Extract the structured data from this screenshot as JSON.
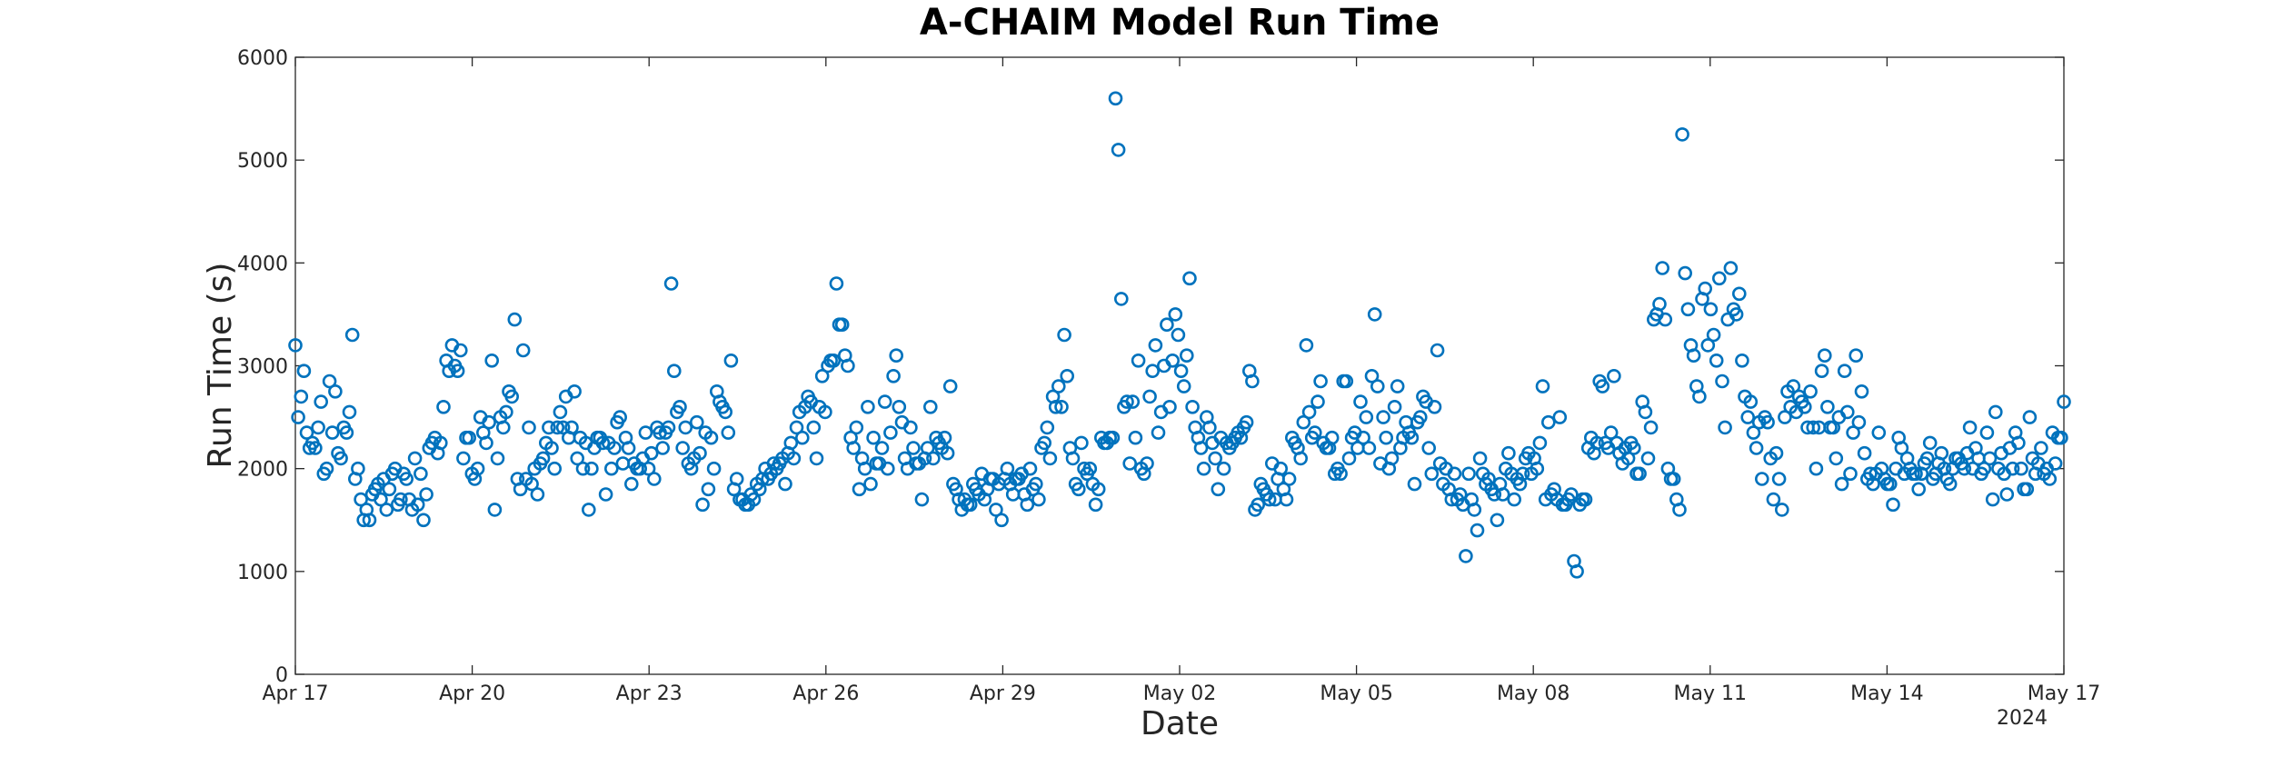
{
  "chart_data": {
    "type": "scatter",
    "title": "A-CHAIM Model Run Time",
    "xlabel": "Date",
    "ylabel": "Run Time (s)",
    "ylim": [
      0,
      6000
    ],
    "yticks": [
      "0",
      "1000",
      "2000",
      "3000",
      "4000",
      "5000",
      "6000"
    ],
    "xlim_days": [
      0,
      30
    ],
    "xticks": [
      {
        "day": 0,
        "label": "Apr 17"
      },
      {
        "day": 3,
        "label": "Apr 20"
      },
      {
        "day": 6,
        "label": "Apr 23"
      },
      {
        "day": 9,
        "label": "Apr 26"
      },
      {
        "day": 12,
        "label": "Apr 29"
      },
      {
        "day": 15,
        "label": "May 02"
      },
      {
        "day": 18,
        "label": "May 05"
      },
      {
        "day": 21,
        "label": "May 08"
      },
      {
        "day": 24,
        "label": "May 11"
      },
      {
        "day": 27,
        "label": "May 14"
      },
      {
        "day": 30,
        "label": "May 17"
      }
    ],
    "year_label": "2024",
    "marker_color": "#0072BD",
    "grid": false,
    "series": [
      {
        "name": "Run Time",
        "x_unit": "days since Apr 17",
        "y": [
          3200,
          2500,
          2700,
          2950,
          2350,
          2200,
          2250,
          2200,
          2400,
          2650,
          1950,
          2000,
          2850,
          2350,
          2750,
          2150,
          2100,
          2400,
          2350,
          2550,
          3300,
          1900,
          2000,
          1700,
          1500,
          1600,
          1500,
          1750,
          1800,
          1850,
          1700,
          1900,
          1600,
          1800,
          1950,
          2000,
          1650,
          1700,
          1950,
          1900,
          1700,
          1600,
          2100,
          1650,
          1950,
          1500,
          1750,
          2200,
          2250,
          2300,
          2150,
          2250,
          2600,
          3050,
          2950,
          3200,
          3000,
          2950,
          3150,
          2100,
          2300,
          2300,
          1950,
          1900,
          2000,
          2500,
          2350,
          2250,
          2450,
          3050,
          1600,
          2100,
          2500,
          2400,
          2550,
          2750,
          2700,
          3450,
          1900,
          1800,
          3150,
          1900,
          2400,
          1850,
          2000,
          1750,
          2050,
          2100,
          2250,
          2400,
          2200,
          2000,
          2400,
          2550,
          2400,
          2700,
          2300,
          2400,
          2750,
          2100,
          2300,
          2000,
          2250,
          1600,
          2000,
          2200,
          2300,
          2300,
          2250,
          1750,
          2250,
          2000,
          2200,
          2450,
          2500,
          2050,
          2300,
          2200,
          1850,
          2050,
          2000,
          2000,
          2100,
          2350,
          2000,
          2150,
          1900,
          2400,
          2350,
          2200,
          2350,
          2400,
          3800,
          2950,
          2550,
          2600,
          2200,
          2400,
          2050,
          2000,
          2100,
          2450,
          2150,
          1650,
          2350,
          1800,
          2300,
          2000,
          2750,
          2650,
          2600,
          2550,
          2350,
          3050,
          1800,
          1900,
          1700,
          1700,
          1650,
          1650,
          1750,
          1700,
          1850,
          1800,
          1900,
          2000,
          1900,
          1950,
          2050,
          2000,
          2050,
          2100,
          1850,
          2150,
          2250,
          2100,
          2400,
          2550,
          2300,
          2600,
          2700,
          2650,
          2400,
          2100,
          2600,
          2900,
          2550,
          3000,
          3050,
          3050,
          3800,
          3400,
          3400,
          3100,
          3000,
          2300,
          2200,
          2400,
          1800,
          2100,
          2000,
          2600,
          1850,
          2300,
          2050,
          2050,
          2200,
          2650,
          2000,
          2350,
          2900,
          3100,
          2600,
          2450,
          2100,
          2000,
          2400,
          2200,
          2050,
          2050,
          1700,
          2100,
          2200,
          2600,
          2100,
          2300,
          2250,
          2200,
          2300,
          2150,
          2800,
          1850,
          1800,
          1700,
          1600,
          1700,
          1650,
          1650,
          1850,
          1800,
          1750,
          1950,
          1700,
          1800,
          1900,
          1900,
          1600,
          1850,
          1500,
          1900,
          2000,
          1850,
          1750,
          1900,
          1900,
          1950,
          1750,
          1650,
          2000,
          1800,
          1850,
          1700,
          2200,
          2250,
          2400,
          2100,
          2700,
          2600,
          2800,
          2600,
          3300,
          2900,
          2200,
          2100,
          1850,
          1800,
          2250,
          2000,
          1950,
          2000,
          1850,
          1650,
          1800,
          2300,
          2250,
          2250,
          2300,
          2300,
          5600,
          5100,
          3650,
          2600,
          2650,
          2050,
          2650,
          2300,
          3050,
          2000,
          1950,
          2050,
          2700,
          2950,
          3200,
          2350,
          2550,
          3000,
          3400,
          2600,
          3050,
          3500,
          3300,
          2950,
          2800,
          3100,
          3850,
          2600,
          2400,
          2300,
          2200,
          2000,
          2500,
          2400,
          2250,
          2100,
          1800,
          2300,
          2000,
          2250,
          2200,
          2250,
          2300,
          2350,
          2300,
          2400,
          2450,
          2950,
          2850,
          1600,
          1650,
          1850,
          1800,
          1750,
          1700,
          2050,
          1700,
          1900,
          2000,
          1800,
          1700,
          1900,
          2300,
          2250,
          2200,
          2100,
          2450,
          3200,
          2550,
          2300,
          2350,
          2650,
          2850,
          2250,
          2200,
          2200,
          2300,
          1950,
          2000,
          1950,
          2850,
          2850,
          2100,
          2300,
          2350,
          2200,
          2650,
          2300,
          2500,
          2200,
          2900,
          3500,
          2800,
          2050,
          2500,
          2300,
          2000,
          2100,
          2600,
          2800,
          2200,
          2300,
          2450,
          2350,
          2300,
          1850,
          2450,
          2500,
          2700,
          2650,
          2200,
          1950,
          2600,
          3150,
          2050,
          1850,
          2000,
          1800,
          1700,
          1950,
          1700,
          1750,
          1650,
          1150,
          1950,
          1700,
          1600,
          1400,
          2100,
          1950,
          1850,
          1900,
          1800,
          1750,
          1500,
          1850,
          1750,
          2000,
          2150,
          1950,
          1700,
          1900,
          1850,
          1950,
          2100,
          2150,
          1950,
          2100,
          2000,
          2250,
          2800,
          1700,
          2450,
          1750,
          1800,
          1700,
          2500,
          1650,
          1650,
          1700,
          1750,
          1100,
          1000,
          1650,
          1700,
          1700,
          2200,
          2300,
          2150,
          2250,
          2850,
          2800,
          2250,
          2200,
          2350,
          2900,
          2250,
          2150,
          2050,
          2200,
          2100,
          2250,
          2200,
          1950,
          1950,
          2650,
          2550,
          2100,
          2400,
          3450,
          3500,
          3600,
          3950,
          3450,
          2000,
          1900,
          1900,
          1700,
          1600,
          5250,
          3900,
          3550,
          3200,
          3100,
          2800,
          2700,
          3650,
          3750,
          3200,
          3550,
          3300,
          3050,
          3850,
          2850,
          2400,
          3450,
          3950,
          3550,
          3500,
          3700,
          3050,
          2700,
          2500,
          2650,
          2350,
          2200,
          2450,
          1900,
          2500,
          2450,
          2100,
          1700,
          2150,
          1900,
          1600,
          2500,
          2750,
          2600,
          2800,
          2550,
          2700,
          2650,
          2600,
          2400,
          2750,
          2400,
          2000,
          2400,
          2950,
          3100,
          2600,
          2400,
          2400,
          2100,
          2500,
          1850,
          2950,
          2550,
          1950,
          2350,
          3100,
          2450,
          2750,
          2150,
          1900,
          1950,
          1850,
          1950,
          2350,
          2000,
          1900,
          1850,
          1850,
          1650,
          2000,
          2300,
          2200,
          1950,
          2100,
          2000,
          1950,
          1950,
          1800,
          1950,
          2050,
          2100,
          2250,
          1900,
          1950,
          2050,
          2150,
          2000,
          1900,
          1850,
          2000,
          2100,
          2100,
          2050,
          2000,
          2150,
          2400,
          2000,
          2200,
          2100,
          1950,
          2000,
          2350,
          2100,
          1700,
          2550,
          2000,
          2150,
          1950,
          1750,
          2200,
          2000,
          2350,
          2250,
          2000,
          1800,
          1800,
          2500,
          2100,
          1950,
          2050,
          2200,
          1950,
          2000,
          1900,
          2350,
          2050,
          2300,
          2300,
          2650
        ]
      }
    ]
  }
}
